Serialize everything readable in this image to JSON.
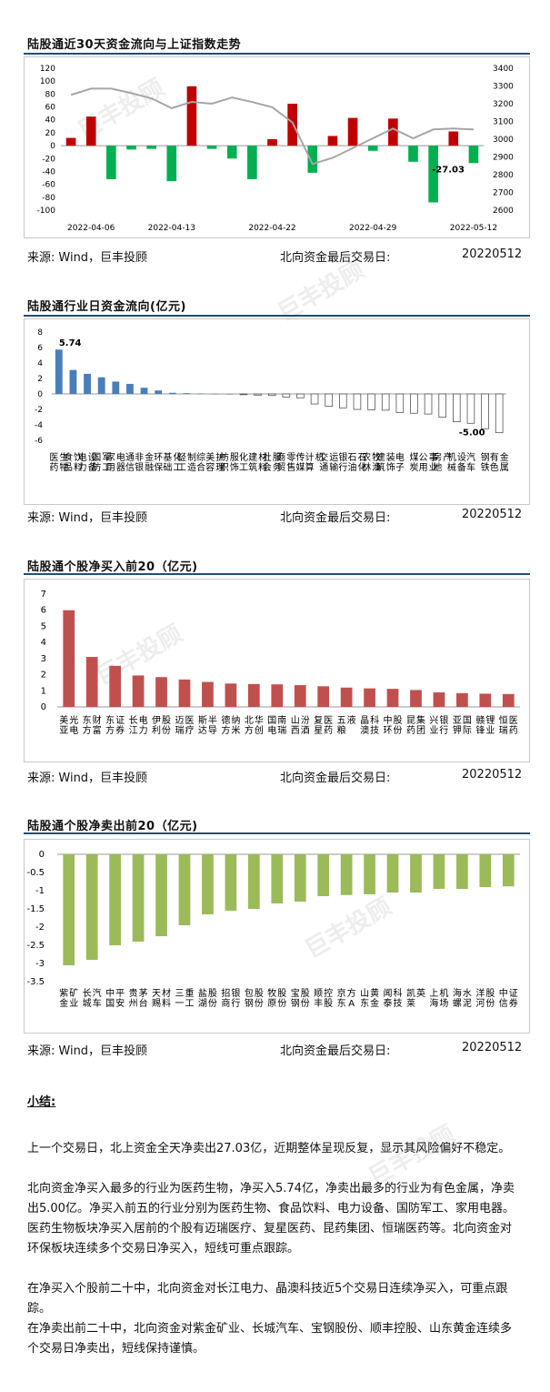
{
  "sections": {
    "s1_title": "陆股通近30天资金流向与上证指数走势",
    "s2_title": "陆股通行业日资金流向(亿元)",
    "s3_title": "陆股通个股净买入前20（亿元)",
    "s4_title": "陆股通个股净卖出前20（亿元)"
  },
  "footer": {
    "source_label": "来源:",
    "source": "Wind，巨丰投顾",
    "last_day_label": "北向资金最后交易日:",
    "last_day": "20220512"
  },
  "watermark": "巨丰投顾",
  "summary": {
    "title": "小结:",
    "paragraphs": [
      "上一个交易日，北上资金全天净卖出27.03亿，近期整体呈现反复，显示其风险偏好不稳定。",
      "北向资金净买入最多的行业为医药生物，净买入5.74亿，净卖出最多的行业为有色金属，净卖出5.00亿。净买入前五的行业分别为医药生物、食品饮料、电力设备、国防军工、家用电器。医药生物板块净买入居前的个股有迈瑞医疗、复星医药、昆药集团、恒瑞医药等。北向资金对环保板块连续多个交易日净买入，短线可重点跟踪。",
      "在净买入个股前二十中，北向资金对长江电力、晶澳科技近5个交易日连续净买入，可重点跟踪。",
      "在净卖出前二十中，北向资金对紫金矿业、长城汽车、宝钢股份、顺丰控股、山东黄金连续多个交易日净卖出，短线保持谨慎。"
    ]
  },
  "chart_data": [
    {
      "type": "bar",
      "title": "陆股通近30天资金流向与上证指数走势",
      "x_ticks": [
        "2022-04-06",
        "2022-04-13",
        "2022-04-22",
        "2022-04-29",
        "2022-05-12"
      ],
      "ylim": [
        -100,
        120
      ],
      "y_ticks": [
        -100,
        -80,
        -60,
        -40,
        -20,
        0,
        20,
        40,
        60,
        80,
        100,
        120
      ],
      "y2lim": [
        2600,
        3400
      ],
      "y2_ticks": [
        2600,
        2700,
        2800,
        2900,
        3000,
        3100,
        3200,
        3300,
        3400
      ],
      "values": [
        12,
        45,
        -52,
        -6,
        -5,
        -55,
        92,
        -5,
        -20,
        -52,
        10,
        65,
        -42,
        15,
        43,
        -8,
        42,
        -25,
        -88,
        22,
        -27.03
      ],
      "line": [
        3250,
        3285,
        3285,
        3260,
        3230,
        3175,
        3210,
        3200,
        3235,
        3210,
        3180,
        3095,
        2860,
        2895,
        2950,
        3005,
        3060,
        3005,
        3055,
        3060,
        3055
      ],
      "annotation": "-27.03",
      "colors": {
        "pos": "#c00000",
        "neg": "#00b050",
        "line": "#a6a6a6"
      }
    },
    {
      "type": "bar",
      "title": "陆股通行业日资金流向(亿元)",
      "ylim": [
        -6,
        8
      ],
      "y_ticks": [
        -6,
        -4,
        -2,
        0,
        2,
        4,
        6,
        8
      ],
      "categories": [
        "医药生物",
        "食品饮料",
        "电力设备",
        "国防军工",
        "家用电器",
        "通信",
        "非银金融",
        "环保",
        "基础化工",
        "轻工制造",
        "综合",
        "美容护理",
        "纺织服饰",
        "化工",
        "建筑材料",
        "社会服务",
        "商贸零售",
        "传媒",
        "计算机",
        "交通运输",
        "银行",
        "石油石化",
        "农林牧渔",
        "建筑装饰",
        "电子",
        "煤炭",
        "公用事业",
        "房地产",
        "机械设备",
        "汽车",
        "钢铁",
        "有色金属"
      ],
      "labels": [
        "医药\n生物",
        "食品\n饮料",
        "电力\n设备",
        "国防\n军工",
        "家用\n电器",
        "通信",
        "非银\n金融",
        "环保",
        "基础\n化工",
        "轻工\n制造",
        "综合",
        "美容\n护理",
        "纺织\n服饰",
        "化工",
        "建筑\n材料",
        "社会\n服务",
        "商贸\n零售",
        "传媒",
        "计算\n机",
        "交通\n运输",
        "银行",
        "石油\n石化",
        "农林\n牧渔",
        "建筑\n装饰",
        "电子",
        "煤炭",
        "公用\n事业",
        "房地\n产",
        "机械\n设备",
        "汽车",
        "钢铁",
        "有色\n金属"
      ],
      "values": [
        5.74,
        3.1,
        2.6,
        2.15,
        1.6,
        1.3,
        0.8,
        0.45,
        0.15,
        0.1,
        0.05,
        0.02,
        0,
        -0.1,
        -0.15,
        -0.2,
        -0.4,
        -0.5,
        -1.3,
        -1.6,
        -1.8,
        -2.0,
        -2.05,
        -2.1,
        -2.4,
        -2.5,
        -2.6,
        -3.0,
        -3.6,
        -3.8,
        -4.5,
        -5.0
      ],
      "max_label": "5.74",
      "min_label": "-5.00",
      "colors": {
        "pos": "#4a7ebb",
        "neg": "#ffffff"
      }
    },
    {
      "type": "bar",
      "title": "陆股通个股净买入前20（亿元)",
      "ylim": [
        0,
        7
      ],
      "y_ticks": [
        0,
        1,
        2,
        3,
        4,
        5,
        6,
        7
      ],
      "categories": [
        "美亚光电",
        "东方财富",
        "东方证券",
        "长江电力",
        "伊利股份",
        "迈瑞医疗",
        "斯达半导",
        "德方纳米",
        "北方华创",
        "国电南瑞",
        "山西汾酒",
        "复星医药",
        "五粮液",
        "晶澳科技",
        "中环股份",
        "昆药集团",
        "兴业银行",
        "亚钾国际",
        "赣锋锂业",
        "恒瑞医药"
      ],
      "labels": [
        "美亚\n光电",
        "东方\n财富",
        "东方\n证券",
        "长江\n电力",
        "伊利\n股份",
        "迈瑞\n医疗",
        "斯达\n半导",
        "德方\n纳米",
        "北方\n华创",
        "国电\n南瑞",
        "山西\n汾酒",
        "复星\n医药",
        "五粮\n液",
        "晶澳\n科技",
        "中环\n股份",
        "昆药\n集团",
        "兴业\n银行",
        "亚钾\n国际",
        "赣锋\n锂业",
        "恒瑞\n医药"
      ],
      "values": [
        6.0,
        3.1,
        2.55,
        1.95,
        1.85,
        1.7,
        1.55,
        1.45,
        1.42,
        1.4,
        1.35,
        1.28,
        1.2,
        1.15,
        1.12,
        1.05,
        0.9,
        0.85,
        0.82,
        0.8
      ],
      "colors": {
        "bar": "#c0504d"
      }
    },
    {
      "type": "bar",
      "title": "陆股通个股净卖出前20（亿元)",
      "ylim": [
        -3.5,
        0
      ],
      "y_ticks": [
        0,
        -0.5,
        -1,
        -1.5,
        -2,
        -2.5,
        -3,
        -3.5
      ],
      "categories": [
        "紫金矿业",
        "长城汽车",
        "中国平安",
        "贵州茅台",
        "天赐材料",
        "三一重工",
        "盐湖股份",
        "招商银行",
        "包钢股份",
        "牧原股份",
        "宝钢股份",
        "顺丰控股",
        "京东方A",
        "山东黄金",
        "闻泰科技",
        "凯莱英",
        "上海机场",
        "海螺水泥",
        "洋河股份",
        "中信证券"
      ],
      "labels": [
        "紫金\n矿业",
        "长城\n汽车",
        "中国\n平安",
        "贵州\n茅台",
        "天赐\n材料",
        "三一\n重工",
        "盐湖\n股份",
        "招商\n银行",
        "包钢\n股份",
        "牧原\n股份",
        "宝钢\n股份",
        "顺丰\n控股",
        "京东\n方A",
        "山东\n黄金",
        "闻泰\n科技",
        "凯莱\n英",
        "上海\n机场",
        "海螺\n水泥",
        "洋河\n股份",
        "中信\n证券"
      ],
      "values": [
        -3.05,
        -2.9,
        -2.5,
        -2.4,
        -2.25,
        -1.95,
        -1.65,
        -1.55,
        -1.5,
        -1.35,
        -1.3,
        -1.15,
        -1.12,
        -1.1,
        -1.05,
        -1.05,
        -0.95,
        -0.95,
        -0.9,
        -0.88
      ],
      "colors": {
        "bar": "#9bbb59"
      }
    }
  ]
}
